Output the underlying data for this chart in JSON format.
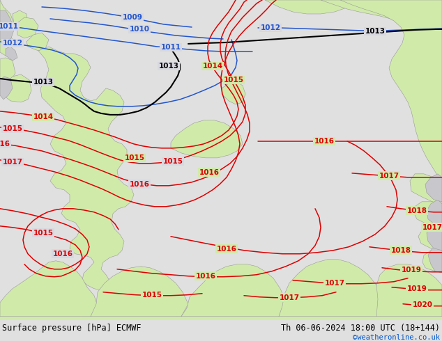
{
  "title_left": "Surface pressure [hPa] ECMWF",
  "title_right": "Th 06-06-2024 18:00 UTC (18+144)",
  "credit": "©weatheronline.co.uk",
  "ocean_color": "#d8d8e0",
  "land_color_green": "#d0eaaa",
  "land_color_grey_light": "#c8c8cc",
  "figsize": [
    6.34,
    4.9
  ],
  "dpi": 100,
  "footer_bg": "#e0e0e0",
  "footer_green": "#d0eaaa",
  "blue_color": "#2255cc",
  "black_color": "#000000",
  "red_color": "#dd0000"
}
